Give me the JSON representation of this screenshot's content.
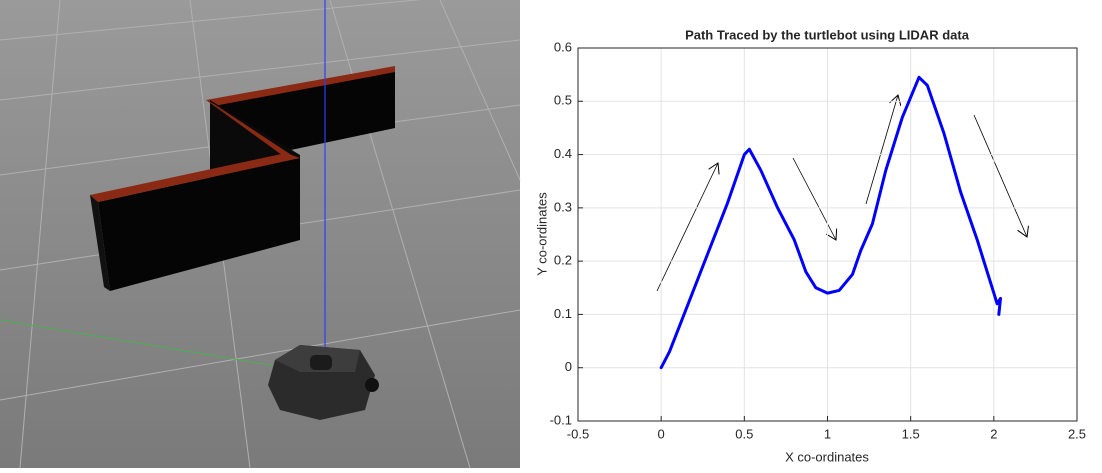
{
  "chart_data": {
    "type": "line",
    "title": "Path Traced by the turtlebot using LIDAR data",
    "xlabel": "X co-ordinates",
    "ylabel": "Y co-ordinates",
    "x": [
      0,
      0.05,
      0.1,
      0.2,
      0.3,
      0.4,
      0.5,
      0.53,
      0.6,
      0.7,
      0.8,
      0.87,
      0.93,
      1.0,
      1.07,
      1.15,
      1.2,
      1.27,
      1.35,
      1.45,
      1.55,
      1.6,
      1.7,
      1.8,
      1.9,
      1.97,
      2.0,
      2.02,
      2.04,
      2.03
    ],
    "values": [
      0,
      0.03,
      0.07,
      0.15,
      0.23,
      0.31,
      0.4,
      0.41,
      0.37,
      0.3,
      0.24,
      0.18,
      0.15,
      0.14,
      0.145,
      0.175,
      0.22,
      0.27,
      0.37,
      0.47,
      0.545,
      0.53,
      0.44,
      0.33,
      0.24,
      0.17,
      0.14,
      0.12,
      0.13,
      0.1
    ],
    "color": "#0000ff",
    "xlim": [
      -0.5,
      2.5
    ],
    "xticks": [
      -0.5,
      0,
      0.5,
      1,
      1.5,
      2,
      2.5
    ],
    "ylim": [
      -0.1,
      0.6
    ],
    "yticks": [
      -0.1,
      0,
      0.1,
      0.2,
      0.3,
      0.4,
      0.5,
      0.6
    ],
    "grid": true
  }
}
